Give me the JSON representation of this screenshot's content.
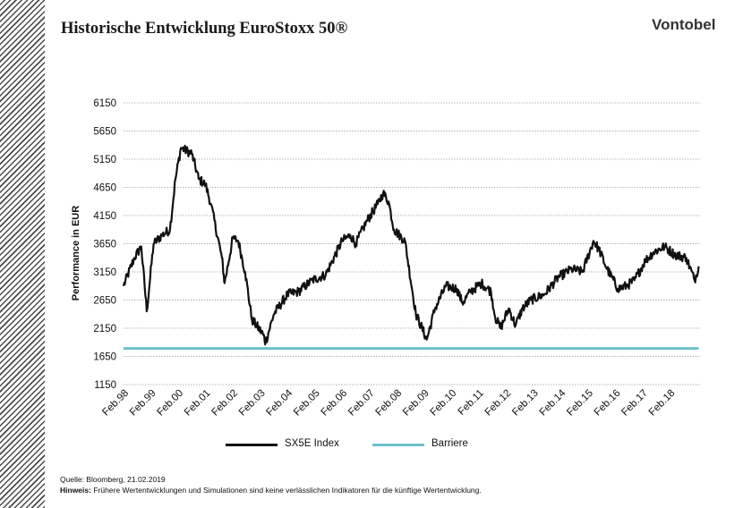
{
  "header": {
    "title": "Historische Entwicklung EuroStoxx 50®",
    "brand": "Vontobel"
  },
  "colors": {
    "index_line": "#111111",
    "barrier_line": "#6cc0c9",
    "grid": "#9a9a9a",
    "side_stripe": "#4a4a4a"
  },
  "chart_data": {
    "type": "line",
    "ylabel": "Performance in EUR",
    "ylim": [
      1150,
      6150
    ],
    "yticks": [
      "6150",
      "5650",
      "5150",
      "4650",
      "4150",
      "3650",
      "3150",
      "2650",
      "2150",
      "1650",
      "1150"
    ],
    "xticks": [
      "Feb.98",
      "Feb.99",
      "Feb.00",
      "Feb.01",
      "Feb.02",
      "Feb.03",
      "Feb.04",
      "Feb.05",
      "Feb.06",
      "Feb.07",
      "Feb.08",
      "Feb.09",
      "Feb.10",
      "Feb.11",
      "Feb.12",
      "Feb.13",
      "Feb.14",
      "Feb.15",
      "Feb.16",
      "Feb.17",
      "Feb.18"
    ],
    "grid": true,
    "legend_position": "bottom",
    "series": [
      {
        "name": "SX5E Index",
        "x": [
          1998.1,
          1998.5,
          1998.75,
          1998.95,
          1999.2,
          1999.5,
          1999.8,
          2000.0,
          2000.2,
          2000.6,
          2000.85,
          2001.1,
          2001.3,
          2001.7,
          2001.8,
          2002.1,
          2002.3,
          2002.55,
          2002.8,
          2003.2,
          2003.3,
          2003.6,
          2004.1,
          2004.5,
          2005.0,
          2005.5,
          2006.1,
          2006.4,
          2006.6,
          2007.0,
          2007.4,
          2007.6,
          2007.8,
          2008.0,
          2008.4,
          2008.8,
          2009.2,
          2009.5,
          2009.9,
          2010.3,
          2010.5,
          2010.8,
          2011.2,
          2011.55,
          2011.7,
          2011.9,
          2012.2,
          2012.45,
          2012.7,
          2013.0,
          2013.5,
          2014.0,
          2014.5,
          2014.9,
          2015.3,
          2015.5,
          2015.8,
          2016.2,
          2016.5,
          2016.8,
          2017.2,
          2017.5,
          2017.9,
          2018.3,
          2018.7,
          2019.0,
          2019.15
        ],
        "values": [
          2900,
          3400,
          3600,
          2450,
          3650,
          3800,
          3900,
          4800,
          5350,
          5250,
          4800,
          4700,
          4350,
          3400,
          2950,
          3750,
          3700,
          3150,
          2300,
          2050,
          1900,
          2400,
          2750,
          2800,
          3000,
          3100,
          3700,
          3800,
          3650,
          4050,
          4350,
          4550,
          4400,
          3900,
          3700,
          2400,
          1950,
          2500,
          2900,
          2850,
          2600,
          2800,
          2950,
          2800,
          2350,
          2150,
          2500,
          2200,
          2500,
          2650,
          2750,
          3050,
          3200,
          3150,
          3700,
          3550,
          3200,
          2850,
          2900,
          3000,
          3350,
          3500,
          3600,
          3450,
          3400,
          3000,
          3250
        ]
      },
      {
        "name": "Barriere",
        "x": [
          1998.1,
          2019.15
        ],
        "values": [
          1790,
          1790
        ]
      }
    ]
  },
  "footer": {
    "source": "Quelle: Bloomberg, 21.02.2019",
    "note_label": "Hinweis:",
    "note_text": "Frühere Wertentwicklungen und Simulationen sind keine verlässlichen Indikatoren für die künftige Wertentwicklung."
  }
}
